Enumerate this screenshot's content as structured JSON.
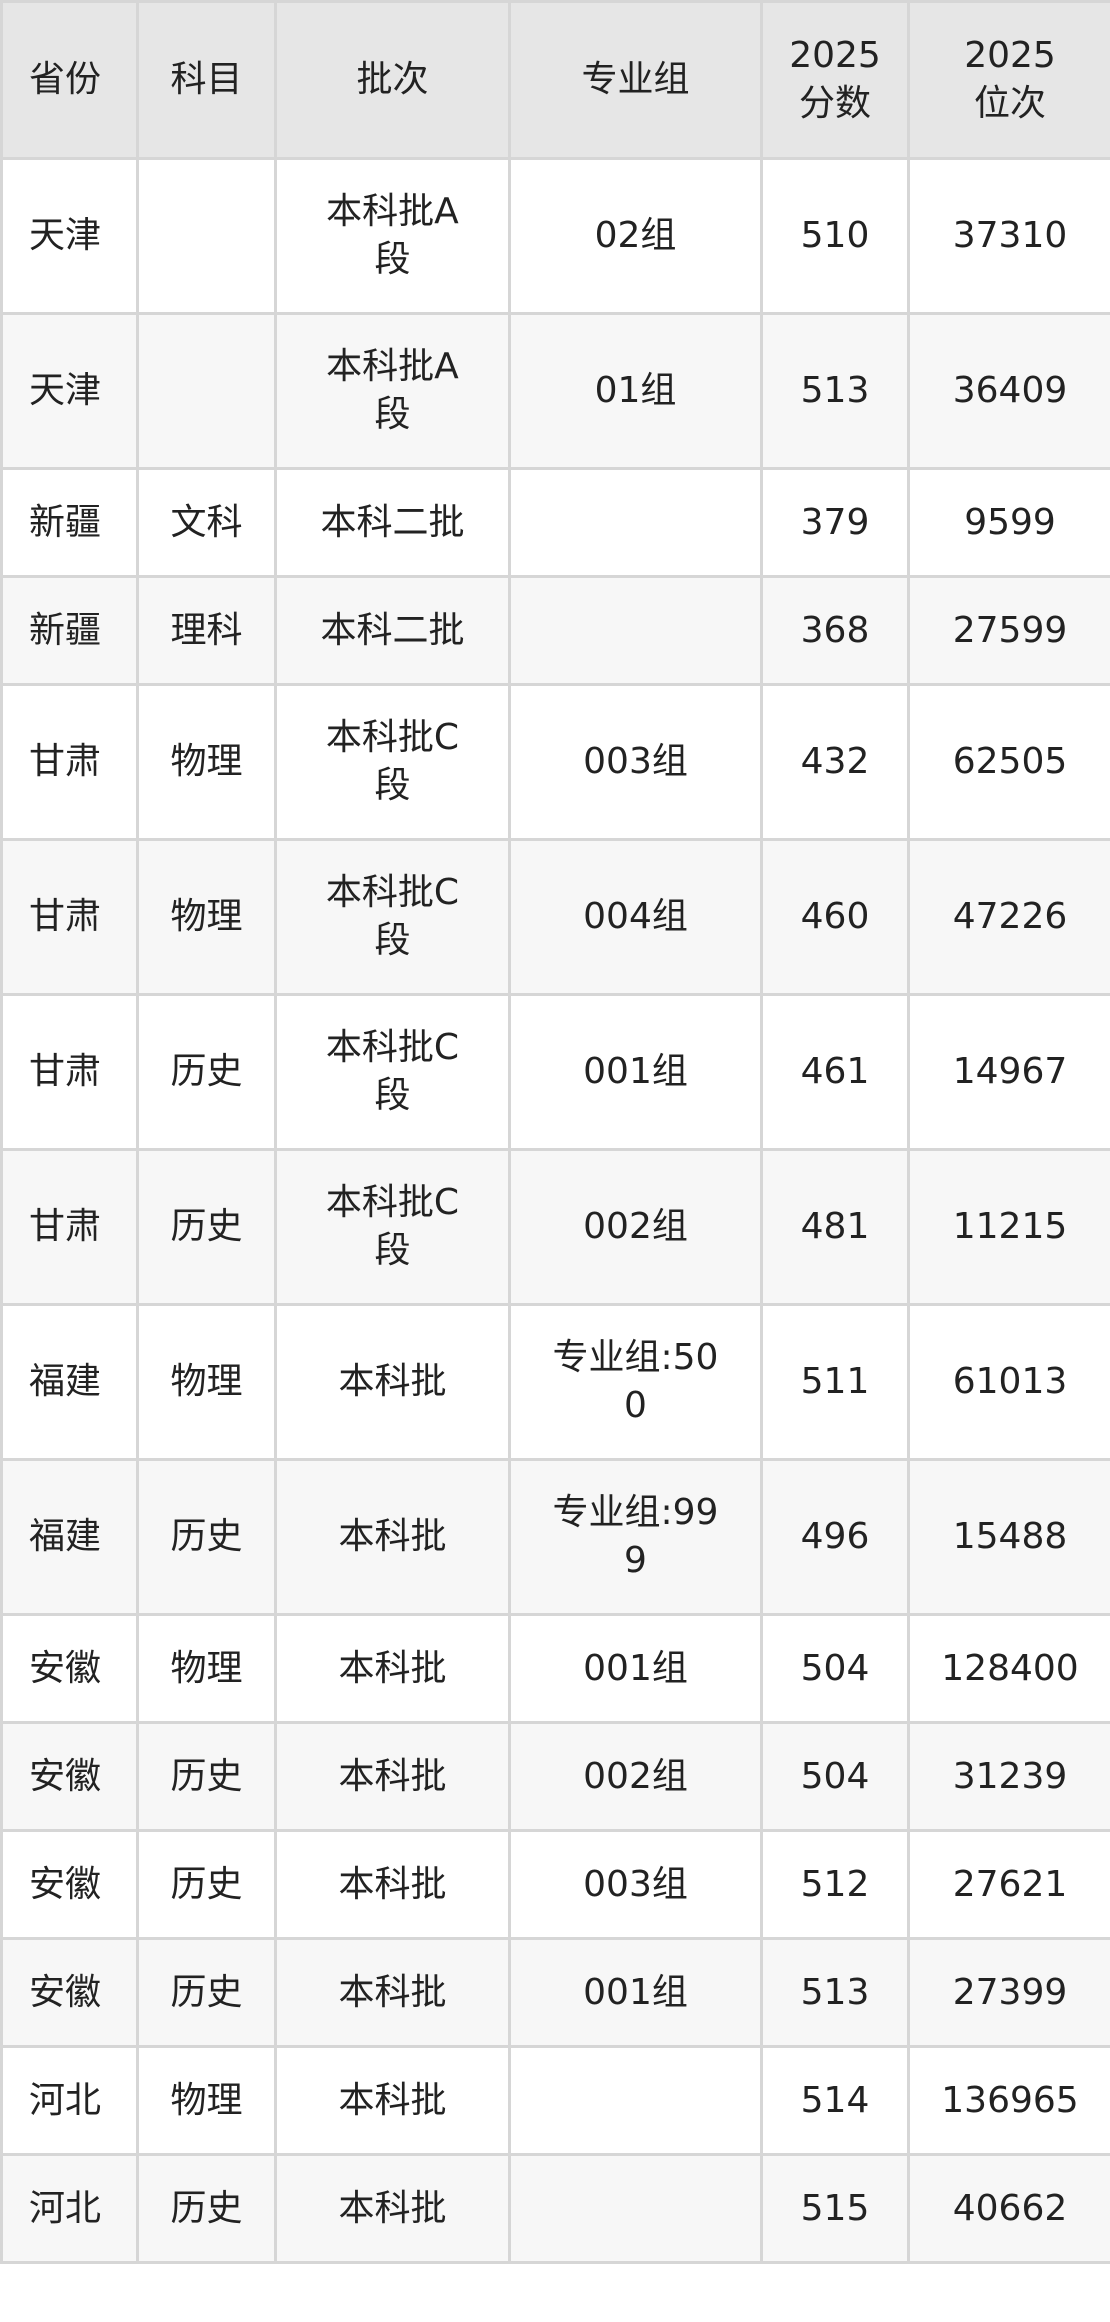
{
  "headers": [
    "省份",
    "科目",
    "批次",
    "专业组",
    "2025分数",
    "2025位次"
  ],
  "rows": [
    {
      "province": "天津",
      "subject": "",
      "batch": "本科批A段",
      "group": "02组",
      "score": "510",
      "rank": "37310"
    },
    {
      "province": "天津",
      "subject": "",
      "batch": "本科批A段",
      "group": "01组",
      "score": "513",
      "rank": "36409"
    },
    {
      "province": "新疆",
      "subject": "文科",
      "batch": "本科二批",
      "group": "",
      "score": "379",
      "rank": "9599"
    },
    {
      "province": "新疆",
      "subject": "理科",
      "batch": "本科二批",
      "group": "",
      "score": "368",
      "rank": "27599"
    },
    {
      "province": "甘肃",
      "subject": "物理",
      "batch": "本科批C段",
      "group": "003组",
      "score": "432",
      "rank": "62505"
    },
    {
      "province": "甘肃",
      "subject": "物理",
      "batch": "本科批C段",
      "group": "004组",
      "score": "460",
      "rank": "47226"
    },
    {
      "province": "甘肃",
      "subject": "历史",
      "batch": "本科批C段",
      "group": "001组",
      "score": "461",
      "rank": "14967"
    },
    {
      "province": "甘肃",
      "subject": "历史",
      "batch": "本科批C段",
      "group": "002组",
      "score": "481",
      "rank": "11215"
    },
    {
      "province": "福建",
      "subject": "物理",
      "batch": "本科批",
      "group": "专业组:500",
      "score": "511",
      "rank": "61013"
    },
    {
      "province": "福建",
      "subject": "历史",
      "batch": "本科批",
      "group": "专业组:999",
      "score": "496",
      "rank": "15488"
    },
    {
      "province": "安徽",
      "subject": "物理",
      "batch": "本科批",
      "group": "001组",
      "score": "504",
      "rank": "128400"
    },
    {
      "province": "安徽",
      "subject": "历史",
      "batch": "本科批",
      "group": "002组",
      "score": "504",
      "rank": "31239"
    },
    {
      "province": "安徽",
      "subject": "历史",
      "batch": "本科批",
      "group": "003组",
      "score": "512",
      "rank": "27621"
    },
    {
      "province": "安徽",
      "subject": "历史",
      "batch": "本科批",
      "group": "001组",
      "score": "513",
      "rank": "27399"
    },
    {
      "province": "河北",
      "subject": "物理",
      "batch": "本科批",
      "group": "",
      "score": "514",
      "rank": "136965"
    },
    {
      "province": "河北",
      "subject": "历史",
      "batch": "本科批",
      "group": "",
      "score": "515",
      "rank": "40662"
    }
  ]
}
